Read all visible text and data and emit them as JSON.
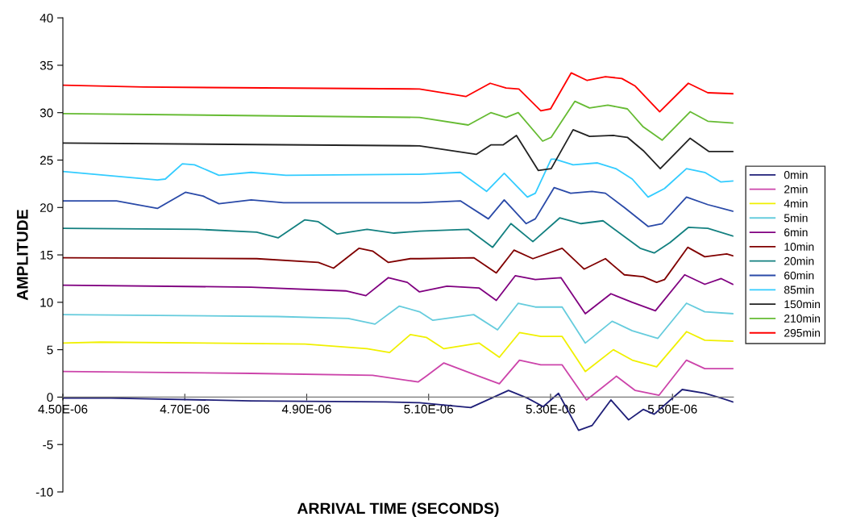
{
  "chart_data": {
    "type": "line",
    "xlabel": "ARRIVAL TIME (SECONDS)",
    "ylabel": "AMPLITUDE",
    "xlim": [
      4.5e-06,
      5.6e-06
    ],
    "xticks": [
      {
        "value": 4.5e-06,
        "label": "4.50E-06"
      },
      {
        "value": 4.7e-06,
        "label": "4.70E-06"
      },
      {
        "value": 4.9e-06,
        "label": "4.90E-06"
      },
      {
        "value": 5.1e-06,
        "label": "5.10E-06"
      },
      {
        "value": 5.3e-06,
        "label": "5.30E-06"
      },
      {
        "value": 5.5e-06,
        "label": "5.50E-06"
      }
    ],
    "ylim": [
      -10,
      40
    ],
    "yticks": [
      -10,
      -5,
      0,
      5,
      10,
      15,
      20,
      25,
      30,
      35,
      40
    ],
    "grid": false,
    "legend": "right",
    "marker": "none",
    "line_style": "solid",
    "series": [
      {
        "name": "0min",
        "color": "#1f1f78",
        "x": [
          4.5e-06,
          4.579e-06,
          4.809e-06,
          5.03e-06,
          5.085e-06,
          5.169e-06,
          5.231e-06,
          5.262e-06,
          5.288e-06,
          5.313e-06,
          5.346e-06,
          5.368e-06,
          5.399e-06,
          5.428e-06,
          5.452e-06,
          5.47e-06,
          5.516e-06,
          5.553e-06,
          5.58e-06,
          5.599e-06
        ],
        "values": [
          -0.1,
          -0.1,
          -0.4,
          -0.5,
          -0.6,
          -1.1,
          0.7,
          -0.1,
          -1.0,
          0.4,
          -3.5,
          -3.0,
          -0.3,
          -2.4,
          -1.3,
          -1.8,
          0.8,
          0.4,
          -0.1,
          -0.5
        ]
      },
      {
        "name": "2min",
        "color": "#cc44aa",
        "x": [
          4.5e-06,
          4.809e-06,
          5.008e-06,
          5.083e-06,
          5.096e-06,
          5.125e-06,
          5.174e-06,
          5.216e-06,
          5.249e-06,
          5.284e-06,
          5.319e-06,
          5.359e-06,
          5.408e-06,
          5.439e-06,
          5.478e-06,
          5.523e-06,
          5.553e-06,
          5.599e-06
        ],
        "values": [
          2.7,
          2.5,
          2.3,
          1.6,
          2.2,
          3.6,
          2.4,
          1.4,
          3.9,
          3.4,
          3.4,
          -0.3,
          2.2,
          0.7,
          0.2,
          3.9,
          3.0,
          3.0
        ]
      },
      {
        "name": "4min",
        "color": "#f0f000",
        "x": [
          4.5e-06,
          4.562e-06,
          4.897e-06,
          4.999e-06,
          5.036e-06,
          5.07e-06,
          5.096e-06,
          5.125e-06,
          5.183e-06,
          5.216e-06,
          5.249e-06,
          5.284e-06,
          5.319e-06,
          5.357e-06,
          5.403e-06,
          5.434e-06,
          5.474e-06,
          5.523e-06,
          5.553e-06,
          5.599e-06
        ],
        "values": [
          5.7,
          5.8,
          5.6,
          5.1,
          4.7,
          6.6,
          6.3,
          5.1,
          5.7,
          4.2,
          6.8,
          6.4,
          6.4,
          2.7,
          5.0,
          3.9,
          3.2,
          6.9,
          6.0,
          5.9
        ]
      },
      {
        "name": "5min",
        "color": "#66ccdd",
        "x": [
          4.5e-06,
          4.853e-06,
          4.968e-06,
          5.012e-06,
          5.052e-06,
          5.085e-06,
          5.107e-06,
          5.174e-06,
          5.213e-06,
          5.247e-06,
          5.275e-06,
          5.319e-06,
          5.357e-06,
          5.401e-06,
          5.434e-06,
          5.476e-06,
          5.523e-06,
          5.553e-06,
          5.599e-06
        ],
        "values": [
          8.7,
          8.5,
          8.3,
          7.7,
          9.6,
          9.0,
          8.1,
          8.7,
          7.1,
          9.9,
          9.5,
          9.5,
          5.7,
          8.0,
          7.0,
          6.2,
          9.9,
          9.0,
          8.8
        ]
      },
      {
        "name": "6min",
        "color": "#800080",
        "x": [
          4.5e-06,
          4.809e-06,
          4.964e-06,
          4.997e-06,
          5.034e-06,
          5.065e-06,
          5.085e-06,
          5.13e-06,
          5.183e-06,
          5.211e-06,
          5.242e-06,
          5.275e-06,
          5.317e-06,
          5.357e-06,
          5.399e-06,
          5.434e-06,
          5.472e-06,
          5.52e-06,
          5.553e-06,
          5.58e-06,
          5.599e-06
        ],
        "values": [
          11.8,
          11.6,
          11.2,
          10.7,
          12.6,
          12.1,
          11.1,
          11.7,
          11.5,
          10.2,
          12.8,
          12.4,
          12.6,
          8.8,
          10.9,
          10.0,
          9.1,
          12.9,
          11.9,
          12.5,
          11.9
        ]
      },
      {
        "name": "10min",
        "color": "#800000",
        "x": [
          4.5e-06,
          4.818e-06,
          4.919e-06,
          4.944e-06,
          4.986e-06,
          5.008e-06,
          5.034e-06,
          5.07e-06,
          5.085e-06,
          5.174e-06,
          5.211e-06,
          5.24e-06,
          5.271e-06,
          5.319e-06,
          5.355e-06,
          5.39e-06,
          5.421e-06,
          5.452e-06,
          5.474e-06,
          5.487e-06,
          5.525e-06,
          5.553e-06,
          5.589e-06,
          5.599e-06
        ],
        "values": [
          14.7,
          14.6,
          14.2,
          13.6,
          15.7,
          15.4,
          14.2,
          14.6,
          14.6,
          14.7,
          13.1,
          15.5,
          14.6,
          15.7,
          13.5,
          14.6,
          12.9,
          12.7,
          12.1,
          12.4,
          15.8,
          14.8,
          15.1,
          14.9
        ]
      },
      {
        "name": "20min",
        "color": "#138080",
        "x": [
          4.5e-06,
          4.721e-06,
          4.818e-06,
          4.853e-06,
          4.897e-06,
          4.919e-06,
          4.95e-06,
          4.999e-06,
          5.043e-06,
          5.085e-06,
          5.165e-06,
          5.205e-06,
          5.235e-06,
          5.271e-06,
          5.315e-06,
          5.35e-06,
          5.386e-06,
          5.447e-06,
          5.47e-06,
          5.496e-06,
          5.526e-06,
          5.558e-06,
          5.599e-06
        ],
        "values": [
          17.8,
          17.7,
          17.4,
          16.8,
          18.7,
          18.5,
          17.2,
          17.7,
          17.3,
          17.5,
          17.7,
          15.8,
          18.3,
          16.4,
          18.9,
          18.3,
          18.6,
          15.7,
          15.2,
          16.3,
          17.9,
          17.8,
          17.0
        ]
      },
      {
        "name": "60min",
        "color": "#2a4aa8",
        "x": [
          4.5e-06,
          4.588e-06,
          4.655e-06,
          4.701e-06,
          4.73e-06,
          4.756e-06,
          4.809e-06,
          4.862e-06,
          5.03e-06,
          5.085e-06,
          5.152e-06,
          5.198e-06,
          5.224e-06,
          5.26e-06,
          5.275e-06,
          5.306e-06,
          5.333e-06,
          5.368e-06,
          5.39e-06,
          5.421e-06,
          5.46e-06,
          5.483e-06,
          5.523e-06,
          5.558e-06,
          5.599e-06
        ],
        "values": [
          20.7,
          20.7,
          19.9,
          21.6,
          21.2,
          20.4,
          20.8,
          20.5,
          20.5,
          20.5,
          20.7,
          18.8,
          20.8,
          18.3,
          18.8,
          22.1,
          21.5,
          21.7,
          21.5,
          20.0,
          18.0,
          18.3,
          21.1,
          20.3,
          19.6
        ]
      },
      {
        "name": "85min",
        "color": "#33ccff",
        "x": [
          4.5e-06,
          4.655e-06,
          4.668e-06,
          4.696e-06,
          4.716e-06,
          4.756e-06,
          4.809e-06,
          4.866e-06,
          5.085e-06,
          5.152e-06,
          5.195e-06,
          5.224e-06,
          5.262e-06,
          5.275e-06,
          5.301e-06,
          5.307e-06,
          5.337e-06,
          5.377e-06,
          5.407e-06,
          5.434e-06,
          5.46e-06,
          5.487e-06,
          5.523e-06,
          5.553e-06,
          5.579e-06,
          5.599e-06
        ],
        "values": [
          23.8,
          22.9,
          23.0,
          24.6,
          24.5,
          23.4,
          23.7,
          23.4,
          23.5,
          23.7,
          21.7,
          23.6,
          21.1,
          21.5,
          25.1,
          25.1,
          24.5,
          24.7,
          24.1,
          23.0,
          21.1,
          22.0,
          24.1,
          23.7,
          22.7,
          22.8
        ]
      },
      {
        "name": "150min",
        "color": "#222222",
        "x": [
          4.5e-06,
          5.085e-06,
          5.178e-06,
          5.202e-06,
          5.222e-06,
          5.244e-06,
          5.28e-06,
          5.301e-06,
          5.337e-06,
          5.364e-06,
          5.403e-06,
          5.426e-06,
          5.452e-06,
          5.48e-06,
          5.529e-06,
          5.56e-06,
          5.599e-06
        ],
        "values": [
          26.8,
          26.5,
          25.6,
          26.6,
          26.6,
          27.6,
          23.9,
          24.1,
          28.2,
          27.5,
          27.6,
          27.4,
          26.0,
          24.1,
          27.3,
          25.9,
          25.9
        ]
      },
      {
        "name": "210min",
        "color": "#66bb33",
        "x": [
          4.5e-06,
          5.085e-06,
          5.165e-06,
          5.202e-06,
          5.227e-06,
          5.247e-06,
          5.287e-06,
          5.301e-06,
          5.34e-06,
          5.364e-06,
          5.394e-06,
          5.426e-06,
          5.452e-06,
          5.483e-06,
          5.529e-06,
          5.558e-06,
          5.599e-06
        ],
        "values": [
          29.9,
          29.5,
          28.7,
          30.0,
          29.5,
          30.0,
          27.0,
          27.4,
          31.2,
          30.5,
          30.8,
          30.4,
          28.5,
          27.1,
          30.1,
          29.1,
          28.9
        ]
      },
      {
        "name": "295min",
        "color": "#ff0000",
        "x": [
          4.5e-06,
          4.632e-06,
          5.085e-06,
          5.161e-06,
          5.201e-06,
          5.227e-06,
          5.248e-06,
          5.284e-06,
          5.3e-06,
          5.334e-06,
          5.36e-06,
          5.39e-06,
          5.417e-06,
          5.439e-06,
          5.479e-06,
          5.526e-06,
          5.558e-06,
          5.599e-06
        ],
        "values": [
          32.9,
          32.7,
          32.5,
          31.7,
          33.1,
          32.6,
          32.5,
          30.2,
          30.4,
          34.2,
          33.4,
          33.8,
          33.6,
          32.8,
          30.1,
          33.1,
          32.1,
          32.0
        ]
      }
    ]
  }
}
